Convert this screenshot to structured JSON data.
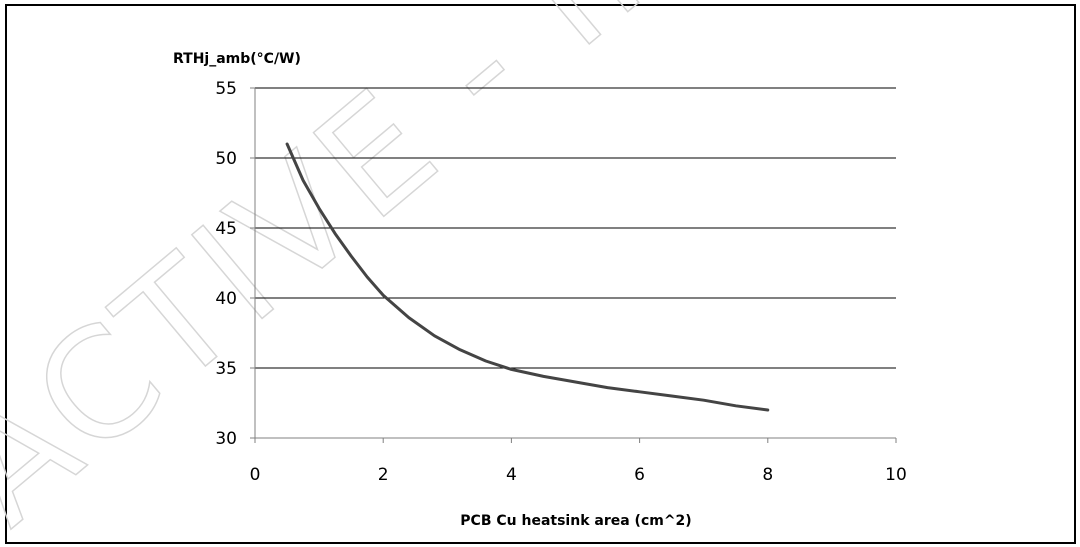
{
  "chart_data": {
    "type": "line",
    "xlabel": "PCB Cu heatsink area (cm^2)",
    "ylabel": "RTHj_amb(°C/W)",
    "xlim": [
      0,
      10
    ],
    "ylim": [
      30,
      55
    ],
    "x_ticks": [
      0,
      2,
      4,
      6,
      8,
      10
    ],
    "y_ticks": [
      30,
      35,
      40,
      45,
      50,
      55
    ],
    "grid": "horizontal",
    "legend": "none",
    "series": [
      {
        "x": [
          0.5,
          0.75,
          1.0,
          1.25,
          1.5,
          1.75,
          2.0,
          2.4,
          2.8,
          3.2,
          3.6,
          4.0,
          4.5,
          5.0,
          5.5,
          6.0,
          6.5,
          7.0,
          7.5,
          8.0
        ],
        "y": [
          51.0,
          48.4,
          46.4,
          44.6,
          43.0,
          41.5,
          40.2,
          38.6,
          37.3,
          36.3,
          35.5,
          34.9,
          34.4,
          34.0,
          33.6,
          33.3,
          33.0,
          32.7,
          32.3,
          32.0
        ]
      }
    ],
    "line_color": "#444444",
    "grid_color": "#000000"
  },
  "watermark_text": "ACTIVE - INAC"
}
